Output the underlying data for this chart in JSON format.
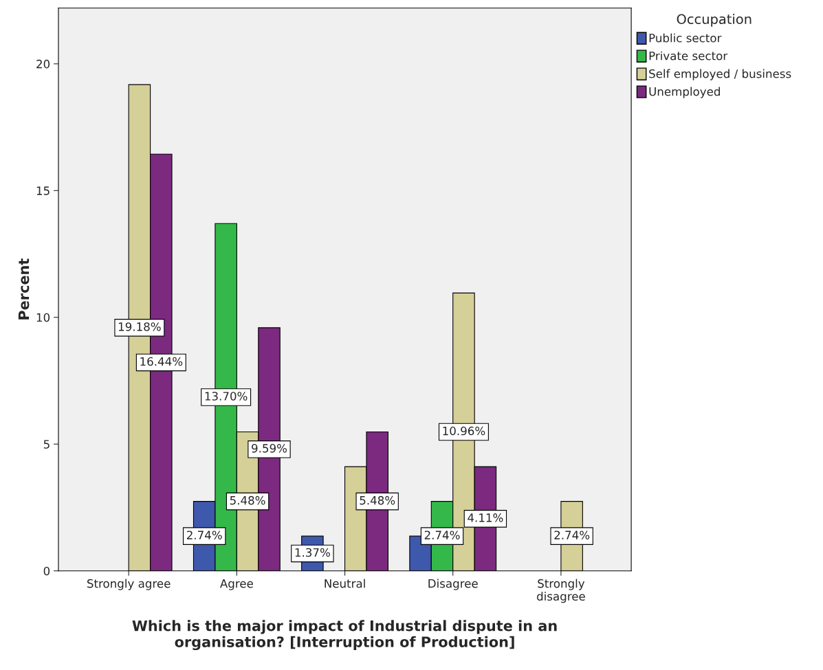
{
  "chart_data": {
    "type": "bar",
    "xlabel": "Which is the major impact of Industrial dispute in an\norganisation? [Interruption of Production]",
    "ylabel": "Percent",
    "legend_title": "Occupation",
    "categories": [
      "Strongly agree",
      "Agree",
      "Neutral",
      "Disagree",
      "Strongly\ndisagree"
    ],
    "series": [
      {
        "name": "Public sector",
        "color": "#3e58ac",
        "values": [
          null,
          2.74,
          1.37,
          1.37,
          null
        ],
        "value_labels": [
          null,
          "2.74%",
          "1.37%",
          null,
          null
        ]
      },
      {
        "name": "Private sector",
        "color": "#35b84a",
        "values": [
          null,
          13.7,
          null,
          2.74,
          null
        ],
        "value_labels": [
          null,
          "13.70%",
          null,
          "2.74%",
          null
        ]
      },
      {
        "name": "Self employed / business",
        "color": "#d5cf98",
        "values": [
          19.18,
          5.48,
          4.11,
          10.96,
          2.74
        ],
        "value_labels": [
          "19.18%",
          "5.48%",
          null,
          "10.96%",
          "2.74%"
        ]
      },
      {
        "name": "Unemployed",
        "color": "#7b2a7f",
        "values": [
          16.44,
          9.59,
          5.48,
          4.11,
          null
        ],
        "value_labels": [
          "16.44%",
          "9.59%",
          "5.48%",
          "4.11%",
          null
        ]
      }
    ],
    "ylim": [
      0,
      22.2
    ],
    "yticks": [
      0,
      5,
      10,
      15,
      20
    ],
    "grid": false,
    "legend": "top right"
  }
}
